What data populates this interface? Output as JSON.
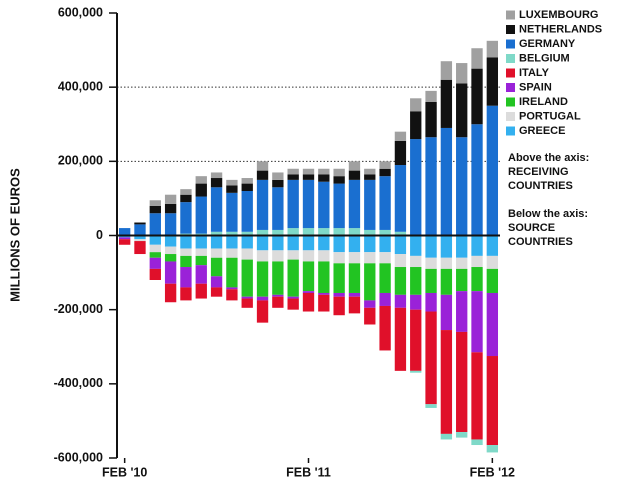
{
  "chart_data": {
    "type": "stacked_bar",
    "y_label": "MILLIONS OF EUROS",
    "categories": [
      "FEB '10",
      null,
      null,
      null,
      null,
      null,
      null,
      null,
      null,
      null,
      null,
      null,
      "FEB '11",
      null,
      null,
      null,
      null,
      null,
      null,
      null,
      null,
      null,
      null,
      null,
      "FEB '12"
    ],
    "ylim": [
      -600000,
      600000
    ],
    "yticks": [
      {
        "value": -600000,
        "label": "-600,000"
      },
      {
        "value": -400000,
        "label": "-400,000"
      },
      {
        "value": -200000,
        "label": "-200,000"
      },
      0,
      {
        "value": 200000,
        "label": "200,000"
      },
      {
        "value": 400000,
        "label": "400,000"
      },
      {
        "value": 600000,
        "label": "600,000"
      }
    ],
    "grid": true,
    "legend": "right",
    "annotations": [
      "Above the axis:",
      "RECEIVING",
      "COUNTRIES",
      "Below the axis:",
      "SOURCE",
      "COUNTRIES"
    ],
    "series": [
      {
        "name": "LUXEMBOURG",
        "color": "#a0a0a0",
        "values": [
          0,
          0,
          15000,
          25000,
          15000,
          20000,
          15000,
          15000,
          15000,
          25000,
          20000,
          15000,
          15000,
          15000,
          20000,
          25000,
          15000,
          20000,
          25000,
          35000,
          30000,
          50000,
          55000,
          55000,
          45000
        ]
      },
      {
        "name": "NETHERLANDS",
        "color": "#111111",
        "values": [
          0,
          5000,
          20000,
          25000,
          20000,
          35000,
          25000,
          20000,
          20000,
          25000,
          20000,
          15000,
          15000,
          20000,
          20000,
          25000,
          15000,
          20000,
          65000,
          75000,
          95000,
          130000,
          145000,
          150000,
          130000
        ]
      },
      {
        "name": "GERMANY",
        "color": "#1a6fd0",
        "values": [
          20000,
          30000,
          60000,
          60000,
          85000,
          100000,
          120000,
          105000,
          110000,
          135000,
          115000,
          130000,
          130000,
          125000,
          120000,
          130000,
          135000,
          145000,
          180000,
          260000,
          265000,
          290000,
          265000,
          300000,
          350000
        ]
      },
      {
        "name": "BELGIUM",
        "color": "#7fd9c8",
        "values": [
          0,
          0,
          0,
          0,
          5000,
          5000,
          10000,
          10000,
          10000,
          15000,
          15000,
          20000,
          20000,
          20000,
          20000,
          20000,
          15000,
          15000,
          10000,
          -5000,
          -10000,
          -15000,
          -15000,
          -15000,
          -20000
        ]
      },
      {
        "name": "ITALY",
        "color": "#e0102a",
        "values": [
          -15000,
          -35000,
          -30000,
          -50000,
          -35000,
          -40000,
          -25000,
          -30000,
          -25000,
          -60000,
          -30000,
          -30000,
          -50000,
          -45000,
          -50000,
          -45000,
          -45000,
          -120000,
          -170000,
          -165000,
          -250000,
          -280000,
          -270000,
          -235000,
          -240000
        ]
      },
      {
        "name": "SPAIN",
        "color": "#9a22d8",
        "values": [
          -5000,
          0,
          -30000,
          -60000,
          -55000,
          -50000,
          -30000,
          -5000,
          -5000,
          -10000,
          -5000,
          -5000,
          -5000,
          -5000,
          -10000,
          -10000,
          -20000,
          -35000,
          -35000,
          -40000,
          -50000,
          -95000,
          -110000,
          -165000,
          -170000
        ]
      },
      {
        "name": "IRELAND",
        "color": "#22c422",
        "values": [
          0,
          0,
          -15000,
          -20000,
          -30000,
          -25000,
          -50000,
          -80000,
          -100000,
          -95000,
          -90000,
          -100000,
          -80000,
          -85000,
          -80000,
          -80000,
          -100000,
          -80000,
          -75000,
          -75000,
          -65000,
          -70000,
          -60000,
          -65000,
          -65000
        ]
      },
      {
        "name": "PORTUGAL",
        "color": "#dcdcdc",
        "values": [
          0,
          -5000,
          -20000,
          -20000,
          -20000,
          -20000,
          -25000,
          -25000,
          -30000,
          -30000,
          -30000,
          -25000,
          -30000,
          -30000,
          -30000,
          -30000,
          -30000,
          -30000,
          -35000,
          -30000,
          -30000,
          -30000,
          -30000,
          -30000,
          -35000
        ]
      },
      {
        "name": "GREECE",
        "color": "#33b0ef",
        "values": [
          -5000,
          -10000,
          -25000,
          -30000,
          -35000,
          -35000,
          -35000,
          -35000,
          -35000,
          -40000,
          -40000,
          -40000,
          -40000,
          -40000,
          -45000,
          -45000,
          -45000,
          -45000,
          -50000,
          -55000,
          -60000,
          -60000,
          -60000,
          -55000,
          -55000
        ]
      }
    ]
  }
}
